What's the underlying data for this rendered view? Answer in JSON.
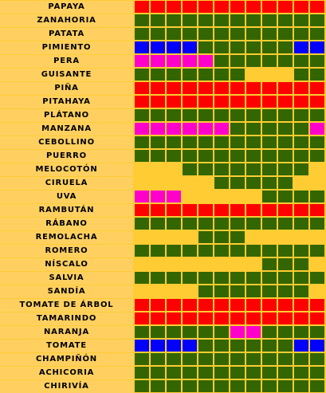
{
  "palette": {
    "G": "#336600",
    "R": "#ff0000",
    "M": "#ff00cc",
    "B": "#0000ff",
    "Y": "#ffcc33"
  },
  "legend_meaning": {
    "G": "green",
    "R": "red",
    "M": "magenta",
    "B": "blue",
    "Y": "empty"
  },
  "rows": [
    {
      "label": "PAPAYA",
      "cells": "RRRRRRRRRRRR"
    },
    {
      "label": "ZANAHORIA",
      "cells": "GGGGGGGGGGGG"
    },
    {
      "label": "PATATA",
      "cells": "GGGGGGGGGGGG"
    },
    {
      "label": "PIMIENTO",
      "cells": "BBBBGGGGGGBB"
    },
    {
      "label": "PERA",
      "cells": "MMMMMGGGGGGG"
    },
    {
      "label": "GUISANTE",
      "cells": "GGGGGGGYYYGG"
    },
    {
      "label": "PIÑA",
      "cells": "RRRRRRRRRRRR"
    },
    {
      "label": "PITAHAYA",
      "cells": "RRRRRRRRRRRR"
    },
    {
      "label": "PLÁTANO",
      "cells": "GGGGGGGGGGGG"
    },
    {
      "label": "MANZANA",
      "cells": "MMMMMMGGGGGM"
    },
    {
      "label": "CEBOLLINO",
      "cells": "GGGGGGGGGGGG"
    },
    {
      "label": "PUERRO",
      "cells": "GGGGGGGGGGGG"
    },
    {
      "label": "MELOCOTÓN",
      "cells": "YYYGGGGGGGGY"
    },
    {
      "label": "CIRUELA",
      "cells": "YYYYYGGGGGYY"
    },
    {
      "label": "UVA",
      "cells": "MMMYYYYYGGGG"
    },
    {
      "label": "RAMBUTÁN",
      "cells": "RRRRRRRRRRRR"
    },
    {
      "label": "RÁBANO",
      "cells": "GGGGGGGGGGGG"
    },
    {
      "label": "REMOLACHA",
      "cells": "YYYYGGGYYYYY"
    },
    {
      "label": "ROMERO",
      "cells": "GGGGGGGGGGGG"
    },
    {
      "label": "NÍSCALO",
      "cells": "YYYYYYYYGGGY"
    },
    {
      "label": "SALVIA",
      "cells": "GGGGGGGGGGGG"
    },
    {
      "label": "SANDÍA",
      "cells": "YYYYGGGGGGGY"
    },
    {
      "label": "TOMATE DE ÁRBOL",
      "cells": "RRRRRRRRRRRR"
    },
    {
      "label": "TAMARINDO",
      "cells": "RRRRRRRRRRRR"
    },
    {
      "label": "NARANJA",
      "cells": "GGGGGGMMGGGG"
    },
    {
      "label": "TOMATE",
      "cells": "BBBBGGGGGGBB"
    },
    {
      "label": "CHAMPIÑÓN",
      "cells": "GGGGGGGGGGGG"
    },
    {
      "label": "ACHICORIA",
      "cells": "GGGGGGGGGGGG"
    },
    {
      "label": "CHIRIVÍA",
      "cells": "GGGGGGGGGGGG"
    }
  ]
}
